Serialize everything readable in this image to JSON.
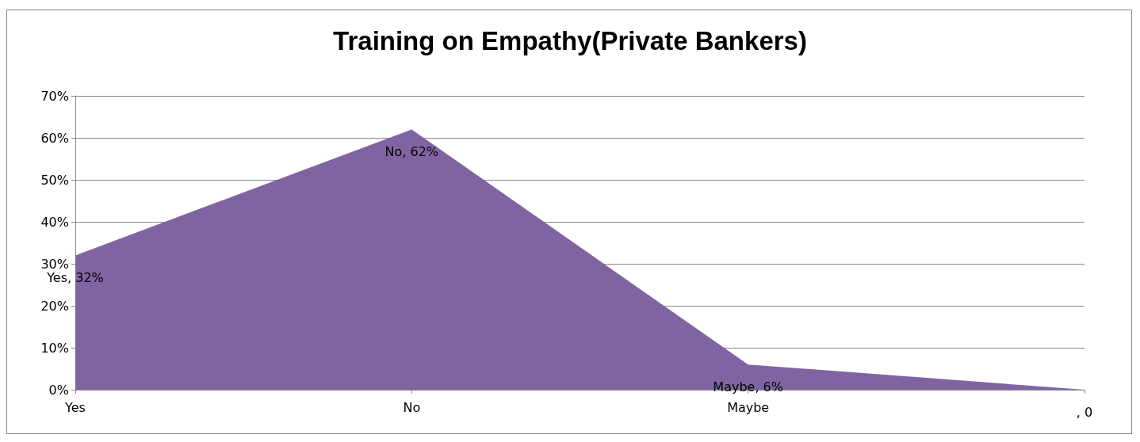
{
  "chart_data": {
    "type": "area",
    "title": "Training on Empathy(Private Bankers)",
    "categories": [
      "Yes",
      "No",
      "Maybe",
      null
    ],
    "series": [
      {
        "color": "#8064a2",
        "values": [
          32,
          62,
          6,
          0
        ],
        "value_labels": [
          "Yes, 32%",
          "No, 62%",
          "Maybe, 6%",
          ", 0"
        ]
      }
    ],
    "ylim": [
      0,
      70
    ],
    "yticks": [
      {
        "value": 0,
        "label": "0%"
      },
      {
        "value": 10,
        "label": "10%"
      },
      {
        "value": 20,
        "label": "20%"
      },
      {
        "value": 30,
        "label": "30%"
      },
      {
        "value": 40,
        "label": "40%"
      },
      {
        "value": 50,
        "label": "50%"
      },
      {
        "value": 60,
        "label": "60%"
      },
      {
        "value": 70,
        "label": "70%"
      }
    ],
    "grid": "y"
  }
}
